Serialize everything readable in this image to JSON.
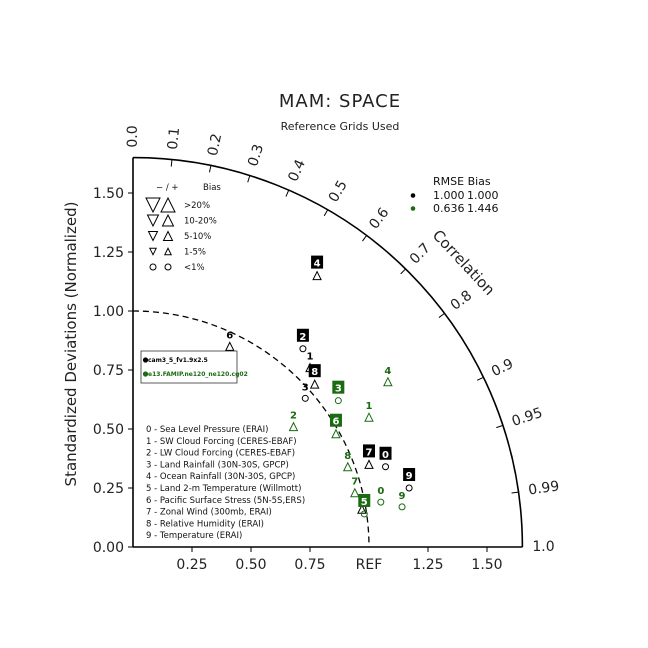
{
  "chart_data": {
    "type": "taylor",
    "title": "MAM: SPACE",
    "subtitle": "Reference Grids Used",
    "ylabel": "Standardized Deviations (Normalized)",
    "correlation_label": "Correlation",
    "ref_label": "REF",
    "std_range": [
      0,
      1.65
    ],
    "y_ticks": [
      "0.00",
      "0.25",
      "0.50",
      "0.75",
      "1.00",
      "1.25",
      "1.50"
    ],
    "x_ticks": [
      "0.25",
      "0.50",
      "0.75",
      "1.25",
      "1.50"
    ],
    "correlation_ticks": [
      "0.0",
      "0.1",
      "0.2",
      "0.3",
      "0.4",
      "0.5",
      "0.6",
      "0.7",
      "0.8",
      "0.9",
      "0.95",
      "0.99",
      "1.0"
    ],
    "bias_key": {
      "header_signs": "− / +",
      "header_label": "Bias",
      "rows": [
        ">20%",
        "10-20%",
        "5-10%",
        "1-5%",
        "<1%"
      ]
    },
    "rmse_bias": {
      "header": "RMSE Bias",
      "rows": [
        {
          "color": "#000000",
          "rmse": "1.000",
          "bias": "1.000"
        },
        {
          "color": "#1a6b12",
          "rmse": "0.636",
          "bias": "1.446"
        }
      ]
    },
    "case_legend": [
      {
        "name": "cam3_5_fv1.9x2.5",
        "color": "#000000"
      },
      {
        "name": "e13.FAMIP.ne120_ne120.cg02",
        "color": "#1a6b12"
      }
    ],
    "variables": [
      "0 - Sea Level Pressure (ERAI)",
      "1 - SW Cloud Forcing (CERES-EBAF)",
      "2 - LW Cloud Forcing (CERES-EBAF)",
      "3 - Land Rainfall (30N-30S, GPCP)",
      "4 - Ocean Rainfall (30N-30S, GPCP)",
      "5 - Land 2-m Temperature (Willmott)",
      "6 - Pacific Surface Stress (5N-5S,ERS)",
      "7 - Zonal Wind (300mb, ERAI)",
      "8 - Relative Humidity (ERAI)",
      "9 - Temperature (ERAI)"
    ],
    "series": [
      {
        "name": "cam3_5_fv1.9x2.5",
        "color": "#000000",
        "points": [
          {
            "label": "0",
            "x": 1.07,
            "y": 0.34,
            "bias": "o"
          },
          {
            "label": "1",
            "x": 0.75,
            "y": 0.76,
            "bias": "up"
          },
          {
            "label": "2",
            "x": 0.72,
            "y": 0.84,
            "bias": "o"
          },
          {
            "label": "3",
            "x": 0.73,
            "y": 0.63,
            "bias": "o"
          },
          {
            "label": "4",
            "x": 0.78,
            "y": 1.15,
            "bias": "up"
          },
          {
            "label": "5",
            "x": 0.97,
            "y": 0.16,
            "bias": "up"
          },
          {
            "label": "6",
            "x": 0.41,
            "y": 0.85,
            "bias": "up"
          },
          {
            "label": "7",
            "x": 1.0,
            "y": 0.35,
            "bias": "up"
          },
          {
            "label": "8",
            "x": 0.77,
            "y": 0.69,
            "bias": "up"
          },
          {
            "label": "9",
            "x": 1.17,
            "y": 0.25,
            "bias": "o"
          }
        ]
      },
      {
        "name": "e13.FAMIP.ne120_ne120.cg02",
        "color": "#1a6b12",
        "points": [
          {
            "label": "0",
            "x": 1.05,
            "y": 0.19,
            "bias": "o"
          },
          {
            "label": "1",
            "x": 1.0,
            "y": 0.55,
            "bias": "up"
          },
          {
            "label": "2",
            "x": 0.68,
            "y": 0.51,
            "bias": "up"
          },
          {
            "label": "3",
            "x": 0.87,
            "y": 0.62,
            "bias": "o"
          },
          {
            "label": "4",
            "x": 1.08,
            "y": 0.7,
            "bias": "up"
          },
          {
            "label": "5",
            "x": 0.98,
            "y": 0.14,
            "bias": "o"
          },
          {
            "label": "6",
            "x": 0.86,
            "y": 0.48,
            "bias": "up"
          },
          {
            "label": "7",
            "x": 0.94,
            "y": 0.23,
            "bias": "up"
          },
          {
            "label": "8",
            "x": 0.91,
            "y": 0.34,
            "bias": "up"
          },
          {
            "label": "9",
            "x": 1.14,
            "y": 0.17,
            "bias": "o"
          }
        ]
      }
    ]
  }
}
